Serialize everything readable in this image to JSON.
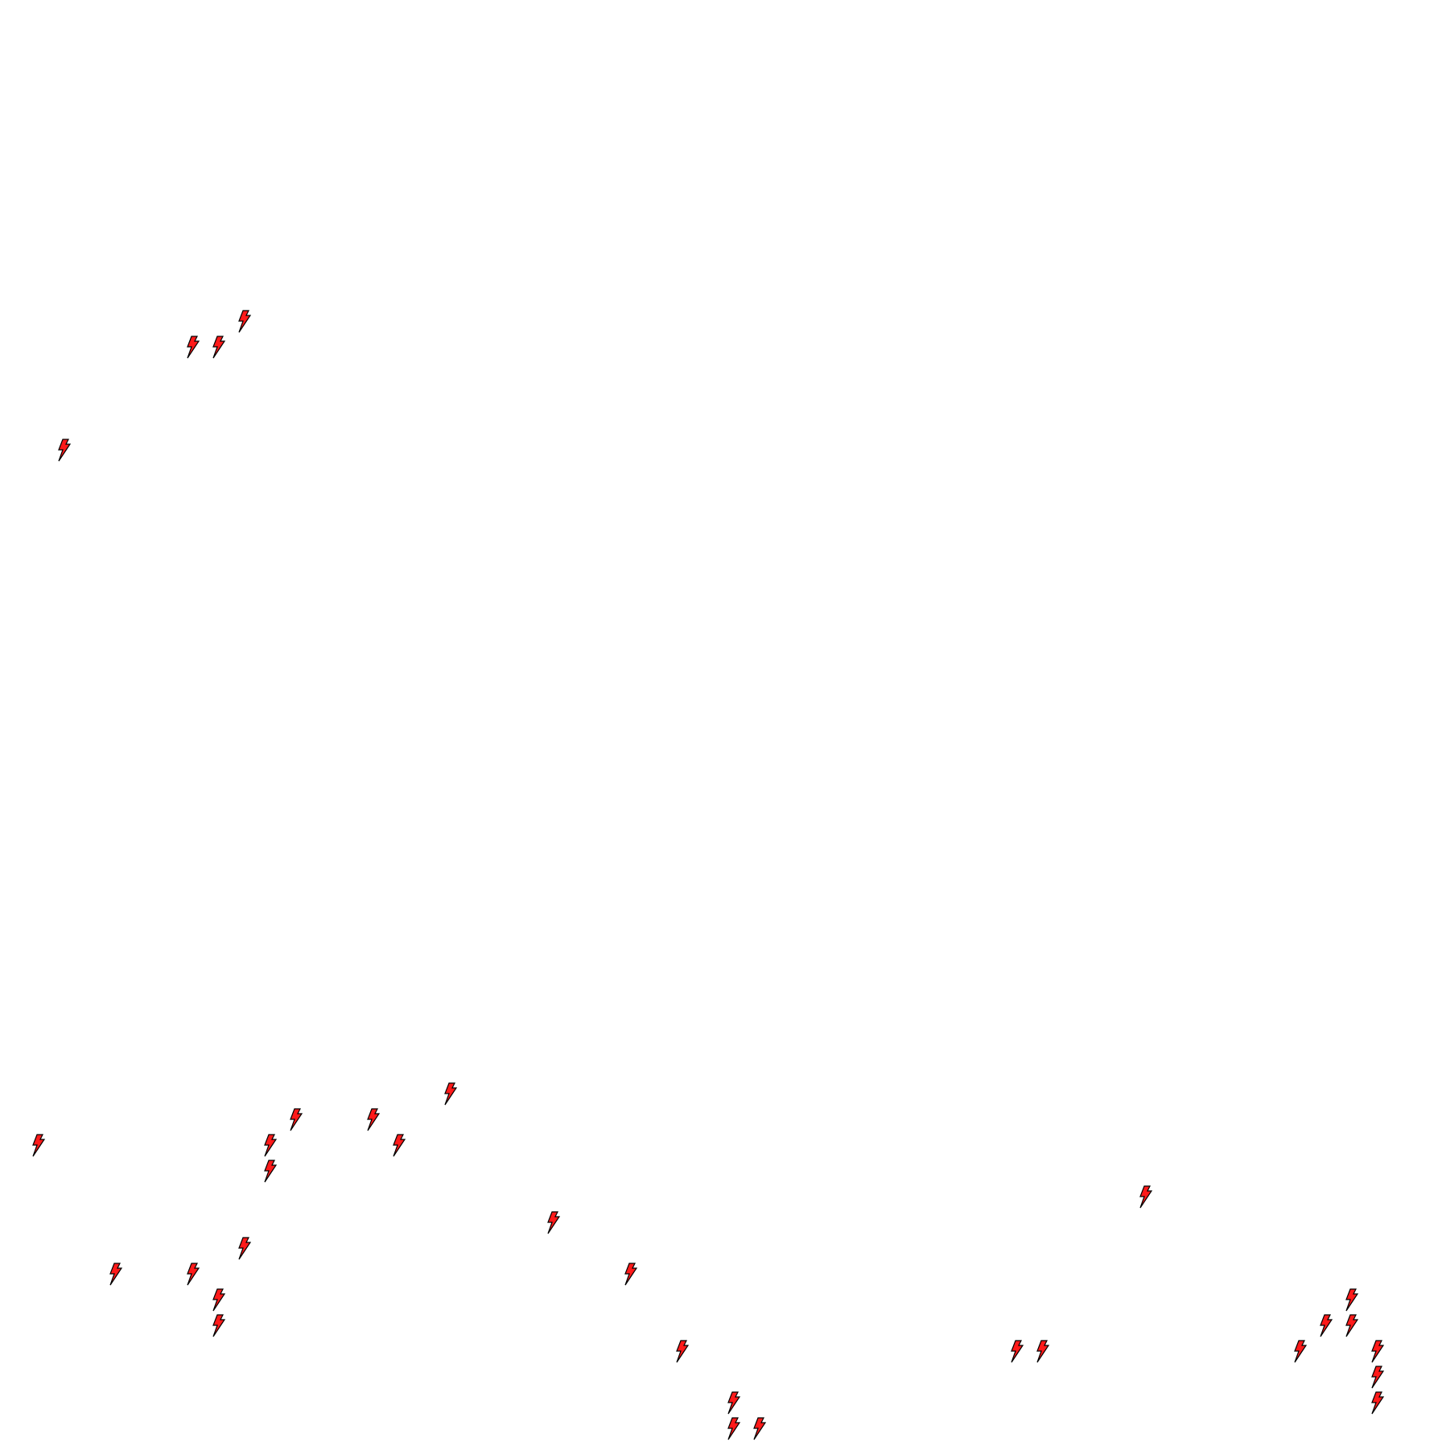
{
  "map": {
    "marker_icon": "lightning-bolt-icon",
    "marker_fill": "#ff1a1a",
    "marker_stroke": "#000000",
    "background": "#ffffff"
  }
}
